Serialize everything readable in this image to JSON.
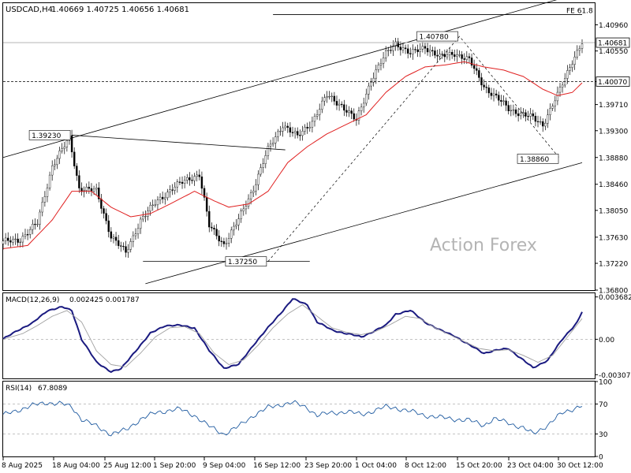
{
  "header": {
    "symbol": "USDCAD,H4",
    "ohlc": "1.40669 1.40725 1.40656 1.40681"
  },
  "watermark": "Action Forex",
  "chart_data": [
    {
      "type": "candlestick",
      "title": "USDCAD,H4",
      "ylim": [
        1.368,
        1.413
      ],
      "y_ticks": [
        "1.40960",
        "1.40550",
        "1.40070",
        "1.39710",
        "1.39300",
        "1.38880",
        "1.38460",
        "1.38050",
        "1.37630",
        "1.37220",
        "1.36800"
      ],
      "x_ticks": [
        "8 Aug 2025",
        "18 Aug 04:00",
        "25 Aug 12:00",
        "1 Sep 20:00",
        "9 Sep 04:00",
        "16 Sep 12:00",
        "23 Sep 20:00",
        "1 Oct 04:00",
        "8 Oct 12:00",
        "15 Oct 20:00",
        "23 Oct 04:00",
        "30 Oct 12:00"
      ],
      "current_price": "1.40681",
      "reference_level": "1.40070",
      "annotations": [
        {
          "label": "1.39230",
          "value": 1.3923,
          "kind": "swing-high"
        },
        {
          "label": "1.37250",
          "value": 1.3725,
          "kind": "swing-low"
        },
        {
          "label": "1.40780",
          "value": 1.4078,
          "kind": "swing-high"
        },
        {
          "label": "1.38860",
          "value": 1.3886,
          "kind": "swing-low"
        }
      ],
      "fib_label": "FE 61.8",
      "series": [
        {
          "name": "price",
          "color": "#000000",
          "anchors": [
            [
              0,
              1.3755
            ],
            [
              7,
              1.376
            ],
            [
              14,
              1.3785
            ],
            [
              20,
              1.3875
            ],
            [
              27,
              1.3918
            ],
            [
              31,
              1.384
            ],
            [
              38,
              1.3835
            ],
            [
              44,
              1.3765
            ],
            [
              50,
              1.3738
            ],
            [
              56,
              1.379
            ],
            [
              63,
              1.382
            ],
            [
              69,
              1.384
            ],
            [
              76,
              1.3855
            ],
            [
              80,
              1.3862
            ],
            [
              84,
              1.378
            ],
            [
              90,
              1.3752
            ],
            [
              96,
              1.379
            ],
            [
              102,
              1.384
            ],
            [
              108,
              1.39
            ],
            [
              114,
              1.394
            ],
            [
              120,
              1.392
            ],
            [
              126,
              1.3945
            ],
            [
              132,
              1.3985
            ],
            [
              138,
              1.397
            ],
            [
              144,
              1.3945
            ],
            [
              150,
              1.401
            ],
            [
              156,
              1.405
            ],
            [
              160,
              1.4068
            ],
            [
              166,
              1.405
            ],
            [
              172,
              1.4062
            ],
            [
              178,
              1.4045
            ],
            [
              184,
              1.4052
            ],
            [
              190,
              1.404
            ],
            [
              196,
              1.4
            ],
            [
              200,
              1.3985
            ],
            [
              206,
              1.3965
            ],
            [
              212,
              1.3955
            ],
            [
              216,
              1.395
            ],
            [
              220,
              1.394
            ],
            [
              226,
              1.3985
            ],
            [
              232,
              1.404
            ],
            [
              236,
              1.4068
            ]
          ]
        },
        {
          "name": "moving average",
          "color": "#e02020",
          "anchors": [
            [
              0,
              1.3745
            ],
            [
              10,
              1.375
            ],
            [
              20,
              1.379
            ],
            [
              28,
              1.3835
            ],
            [
              36,
              1.3835
            ],
            [
              44,
              1.381
            ],
            [
              52,
              1.3795
            ],
            [
              60,
              1.38
            ],
            [
              68,
              1.3815
            ],
            [
              78,
              1.3835
            ],
            [
              86,
              1.382
            ],
            [
              92,
              1.381
            ],
            [
              100,
              1.3815
            ],
            [
              108,
              1.3835
            ],
            [
              116,
              1.388
            ],
            [
              124,
              1.3905
            ],
            [
              132,
              1.3925
            ],
            [
              140,
              1.394
            ],
            [
              148,
              1.3955
            ],
            [
              156,
              1.399
            ],
            [
              164,
              1.4015
            ],
            [
              172,
              1.403
            ],
            [
              180,
              1.4033
            ],
            [
              188,
              1.4038
            ],
            [
              196,
              1.403
            ],
            [
              204,
              1.4025
            ],
            [
              212,
              1.4015
            ],
            [
              220,
              1.3995
            ],
            [
              226,
              1.3985
            ],
            [
              232,
              1.399
            ],
            [
              236,
              1.4005
            ]
          ]
        }
      ]
    },
    {
      "type": "line",
      "title": "MACD(12,26,9)",
      "values_label": "0.002425 0.001787",
      "ylim": [
        -0.0034,
        0.004
      ],
      "y_ticks": [
        "0.003682",
        "0.00",
        "-0.003077"
      ],
      "series": [
        {
          "name": "MACD",
          "color": "#1a1a80",
          "anchors": [
            [
              0,
              0.0
            ],
            [
              6,
              0.0008
            ],
            [
              12,
              0.0014
            ],
            [
              18,
              0.0025
            ],
            [
              24,
              0.0028
            ],
            [
              28,
              0.0025
            ],
            [
              32,
              0.0
            ],
            [
              38,
              -0.002
            ],
            [
              44,
              -0.0028
            ],
            [
              48,
              -0.0026
            ],
            [
              54,
              -0.001
            ],
            [
              60,
              0.0005
            ],
            [
              66,
              0.0012
            ],
            [
              72,
              0.0012
            ],
            [
              78,
              0.001
            ],
            [
              84,
              -0.001
            ],
            [
              90,
              -0.0025
            ],
            [
              96,
              -0.0022
            ],
            [
              102,
              -0.0005
            ],
            [
              108,
              0.001
            ],
            [
              114,
              0.0025
            ],
            [
              118,
              0.0035
            ],
            [
              124,
              0.003
            ],
            [
              128,
              0.0015
            ],
            [
              134,
              0.0008
            ],
            [
              140,
              0.0005
            ],
            [
              146,
              0.0002
            ],
            [
              152,
              0.0008
            ],
            [
              156,
              0.0012
            ],
            [
              160,
              0.0022
            ],
            [
              166,
              0.0025
            ],
            [
              172,
              0.0015
            ],
            [
              178,
              0.0008
            ],
            [
              184,
              0.0003
            ],
            [
              190,
              -0.0005
            ],
            [
              196,
              -0.0012
            ],
            [
              200,
              -0.001
            ],
            [
              206,
              -0.0008
            ],
            [
              212,
              -0.0018
            ],
            [
              216,
              -0.0025
            ],
            [
              222,
              -0.0018
            ],
            [
              228,
              0.0
            ],
            [
              234,
              0.0015
            ],
            [
              236,
              0.0024
            ]
          ]
        },
        {
          "name": "Signal",
          "color": "#a0a0a0",
          "anchors": [
            [
              0,
              0.0
            ],
            [
              8,
              0.0005
            ],
            [
              14,
              0.0012
            ],
            [
              20,
              0.002
            ],
            [
              26,
              0.0025
            ],
            [
              32,
              0.0015
            ],
            [
              38,
              -0.001
            ],
            [
              44,
              -0.0022
            ],
            [
              50,
              -0.0024
            ],
            [
              56,
              -0.0012
            ],
            [
              62,
              0.0002
            ],
            [
              68,
              0.001
            ],
            [
              74,
              0.0011
            ],
            [
              80,
              0.0005
            ],
            [
              86,
              -0.0012
            ],
            [
              92,
              -0.0022
            ],
            [
              98,
              -0.0018
            ],
            [
              104,
              -0.0005
            ],
            [
              110,
              0.001
            ],
            [
              116,
              0.0022
            ],
            [
              122,
              0.003
            ],
            [
              128,
              0.002
            ],
            [
              134,
              0.001
            ],
            [
              140,
              0.0006
            ],
            [
              146,
              0.0004
            ],
            [
              152,
              0.0007
            ],
            [
              158,
              0.0013
            ],
            [
              164,
              0.002
            ],
            [
              170,
              0.0018
            ],
            [
              176,
              0.001
            ],
            [
              182,
              0.0004
            ],
            [
              188,
              -0.0002
            ],
            [
              194,
              -0.0008
            ],
            [
              200,
              -0.001
            ],
            [
              206,
              -0.0009
            ],
            [
              212,
              -0.0014
            ],
            [
              218,
              -0.002
            ],
            [
              224,
              -0.0014
            ],
            [
              230,
              0.0002
            ],
            [
              236,
              0.0018
            ]
          ]
        }
      ]
    },
    {
      "type": "line",
      "title": "RSI(14)",
      "values_label": "67.8089",
      "ylim": [
        0,
        100
      ],
      "y_ticks": [
        "100",
        "70",
        "30",
        "0"
      ],
      "levels": [
        70,
        30
      ],
      "series": [
        {
          "name": "RSI",
          "color": "#1e5aa0",
          "anchors": [
            [
              0,
              55
            ],
            [
              6,
              62
            ],
            [
              12,
              68
            ],
            [
              18,
              72
            ],
            [
              24,
              70
            ],
            [
              28,
              66
            ],
            [
              32,
              50
            ],
            [
              38,
              40
            ],
            [
              44,
              30
            ],
            [
              50,
              35
            ],
            [
              56,
              50
            ],
            [
              62,
              58
            ],
            [
              68,
              62
            ],
            [
              72,
              63
            ],
            [
              78,
              55
            ],
            [
              84,
              40
            ],
            [
              90,
              30
            ],
            [
              96,
              40
            ],
            [
              102,
              55
            ],
            [
              108,
              65
            ],
            [
              114,
              70
            ],
            [
              118,
              72
            ],
            [
              124,
              65
            ],
            [
              128,
              55
            ],
            [
              134,
              58
            ],
            [
              140,
              60
            ],
            [
              146,
              56
            ],
            [
              152,
              62
            ],
            [
              156,
              66
            ],
            [
              160,
              65
            ],
            [
              166,
              60
            ],
            [
              172,
              55
            ],
            [
              178,
              52
            ],
            [
              184,
              50
            ],
            [
              190,
              48
            ],
            [
              196,
              42
            ],
            [
              200,
              50
            ],
            [
              206,
              45
            ],
            [
              212,
              38
            ],
            [
              216,
              30
            ],
            [
              222,
              42
            ],
            [
              228,
              58
            ],
            [
              234,
              66
            ],
            [
              236,
              68
            ]
          ]
        }
      ]
    }
  ]
}
